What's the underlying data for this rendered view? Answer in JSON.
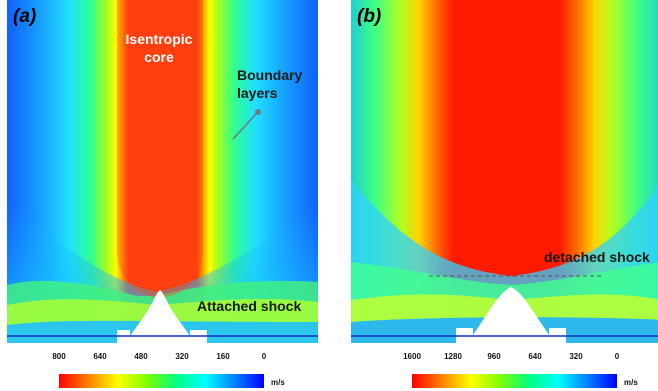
{
  "panel_a": {
    "label": "(a)",
    "annotations": {
      "isentropic_core": "Isentropic\ncore",
      "boundary_layers": "Boundary\nlayers",
      "attached_shock": "Attached shock"
    },
    "colorbar": {
      "ticks": [
        "800",
        "640",
        "480",
        "320",
        "160",
        "0"
      ],
      "unit": "m/s",
      "range": [
        800,
        0
      ]
    }
  },
  "panel_b": {
    "label": "(b)",
    "annotations": {
      "detached_shock": "detached shock"
    },
    "colorbar": {
      "ticks": [
        "1600",
        "1280",
        "960",
        "640",
        "320",
        "0"
      ],
      "unit": "m/s",
      "range": [
        1600,
        0
      ]
    }
  },
  "colors": {
    "max": "#ff0000",
    "high": "#ffff00",
    "mid": "#00ff00",
    "low": "#00ffff",
    "min": "#0000ff"
  }
}
